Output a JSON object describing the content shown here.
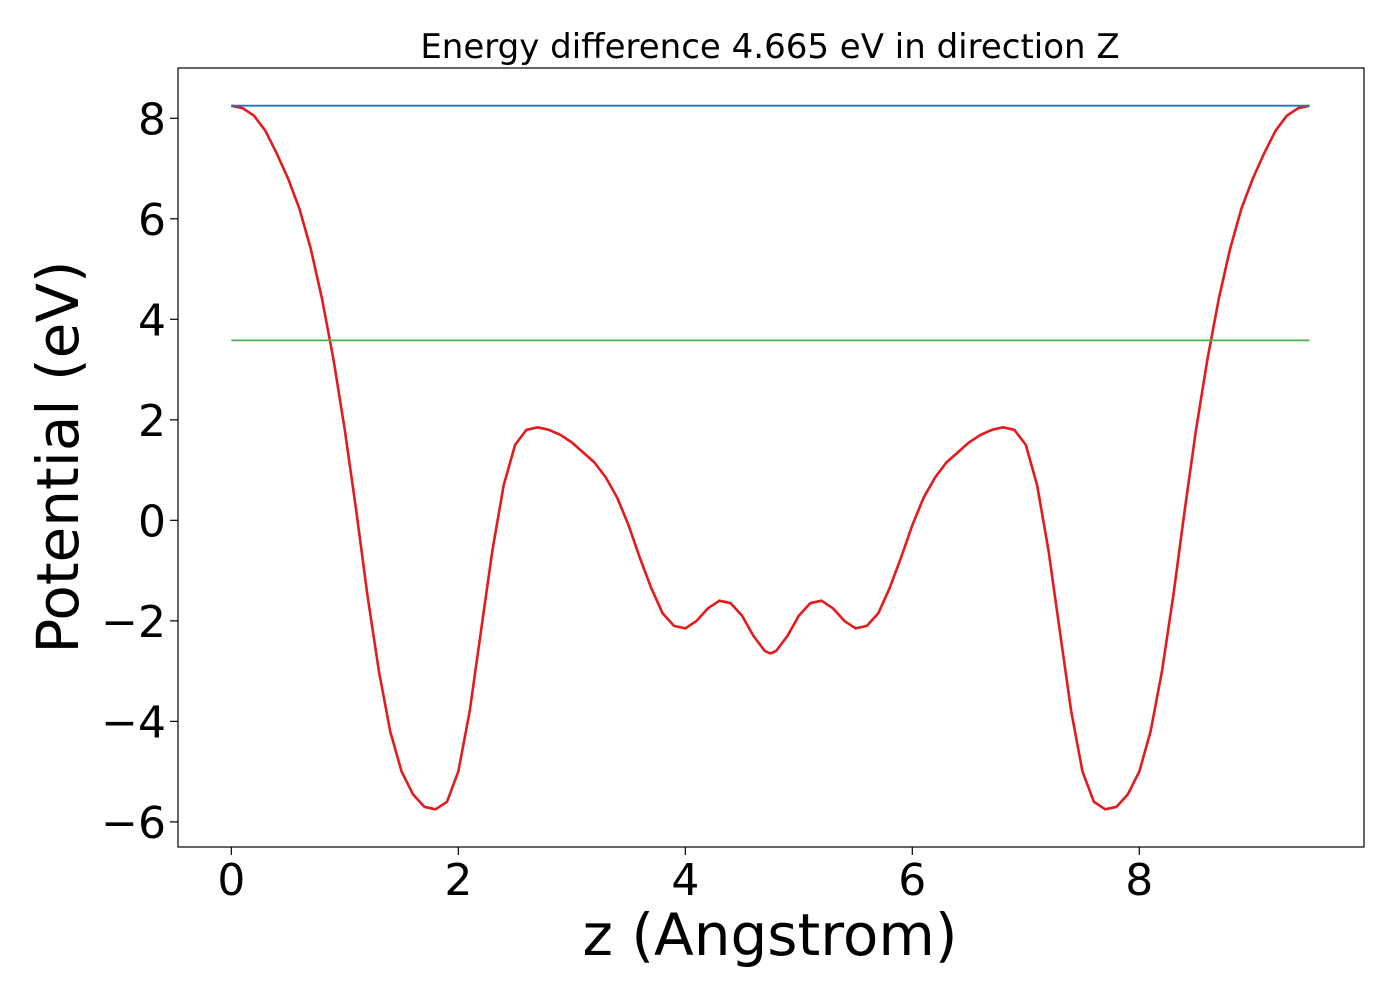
{
  "chart_data": {
    "type": "line",
    "title": "Energy difference 4.665 eV in direction Z",
    "xlabel": "z (Angstrom)",
    "ylabel": "Potential (eV)",
    "xlim": [
      -0.47,
      9.98
    ],
    "ylim": [
      -6.5,
      9.0
    ],
    "xticks": [
      0,
      2,
      4,
      6,
      8
    ],
    "yticks": [
      -6,
      -4,
      -2,
      0,
      2,
      4,
      6,
      8
    ],
    "xtick_labels": [
      "0",
      "2",
      "4",
      "6",
      "8"
    ],
    "ytick_labels": [
      "−6",
      "−4",
      "−2",
      "0",
      "2",
      "4",
      "6",
      "8"
    ],
    "grid": false,
    "legend": "none",
    "colors": {
      "potential": "#e41a1c",
      "vacuum_level": "#1f77b4",
      "fermi_level": "#4daf4a"
    },
    "series": [
      {
        "key": "potential",
        "x": [
          0.0,
          0.1,
          0.2,
          0.3,
          0.4,
          0.5,
          0.6,
          0.7,
          0.8,
          0.9,
          1.0,
          1.1,
          1.2,
          1.3,
          1.4,
          1.5,
          1.6,
          1.7,
          1.8,
          1.9,
          2.0,
          2.1,
          2.2,
          2.3,
          2.4,
          2.5,
          2.6,
          2.7,
          2.8,
          2.9,
          3.0,
          3.1,
          3.2,
          3.3,
          3.4,
          3.5,
          3.6,
          3.7,
          3.8,
          3.9,
          4.0,
          4.1,
          4.2,
          4.3,
          4.4,
          4.5,
          4.6,
          4.7,
          4.75,
          4.8,
          4.9,
          5.0,
          5.1,
          5.2,
          5.3,
          5.4,
          5.5,
          5.6,
          5.7,
          5.8,
          5.9,
          6.0,
          6.1,
          6.2,
          6.3,
          6.4,
          6.5,
          6.6,
          6.7,
          6.8,
          6.9,
          7.0,
          7.1,
          7.2,
          7.3,
          7.4,
          7.5,
          7.6,
          7.7,
          7.8,
          7.9,
          8.0,
          8.1,
          8.2,
          8.3,
          8.4,
          8.5,
          8.6,
          8.7,
          8.8,
          8.9,
          9.0,
          9.1,
          9.2,
          9.3,
          9.4,
          9.5
        ],
        "y": [
          8.25,
          8.2,
          8.05,
          7.75,
          7.3,
          6.8,
          6.2,
          5.4,
          4.4,
          3.2,
          1.8,
          0.2,
          -1.5,
          -3.0,
          -4.2,
          -5.0,
          -5.45,
          -5.7,
          -5.75,
          -5.6,
          -5.0,
          -3.8,
          -2.2,
          -0.6,
          0.7,
          1.5,
          1.8,
          1.85,
          1.8,
          1.7,
          1.55,
          1.35,
          1.15,
          0.85,
          0.45,
          -0.1,
          -0.75,
          -1.35,
          -1.85,
          -2.1,
          -2.15,
          -2.0,
          -1.75,
          -1.6,
          -1.65,
          -1.9,
          -2.3,
          -2.6,
          -2.65,
          -2.6,
          -2.3,
          -1.9,
          -1.65,
          -1.6,
          -1.75,
          -2.0,
          -2.15,
          -2.1,
          -1.85,
          -1.35,
          -0.75,
          -0.1,
          0.45,
          0.85,
          1.15,
          1.35,
          1.55,
          1.7,
          1.8,
          1.85,
          1.8,
          1.5,
          0.7,
          -0.6,
          -2.2,
          -3.8,
          -5.0,
          -5.6,
          -5.75,
          -5.7,
          -5.45,
          -5.0,
          -4.2,
          -3.0,
          -1.5,
          0.2,
          1.8,
          3.2,
          4.4,
          5.4,
          6.2,
          6.8,
          7.3,
          7.75,
          8.05,
          8.2,
          8.25
        ]
      },
      {
        "key": "vacuum_level",
        "x": [
          0.0,
          9.5
        ],
        "y": [
          8.25,
          8.25
        ]
      },
      {
        "key": "fermi_level",
        "x": [
          0.0,
          9.5
        ],
        "y": [
          3.58,
          3.58
        ]
      }
    ]
  }
}
